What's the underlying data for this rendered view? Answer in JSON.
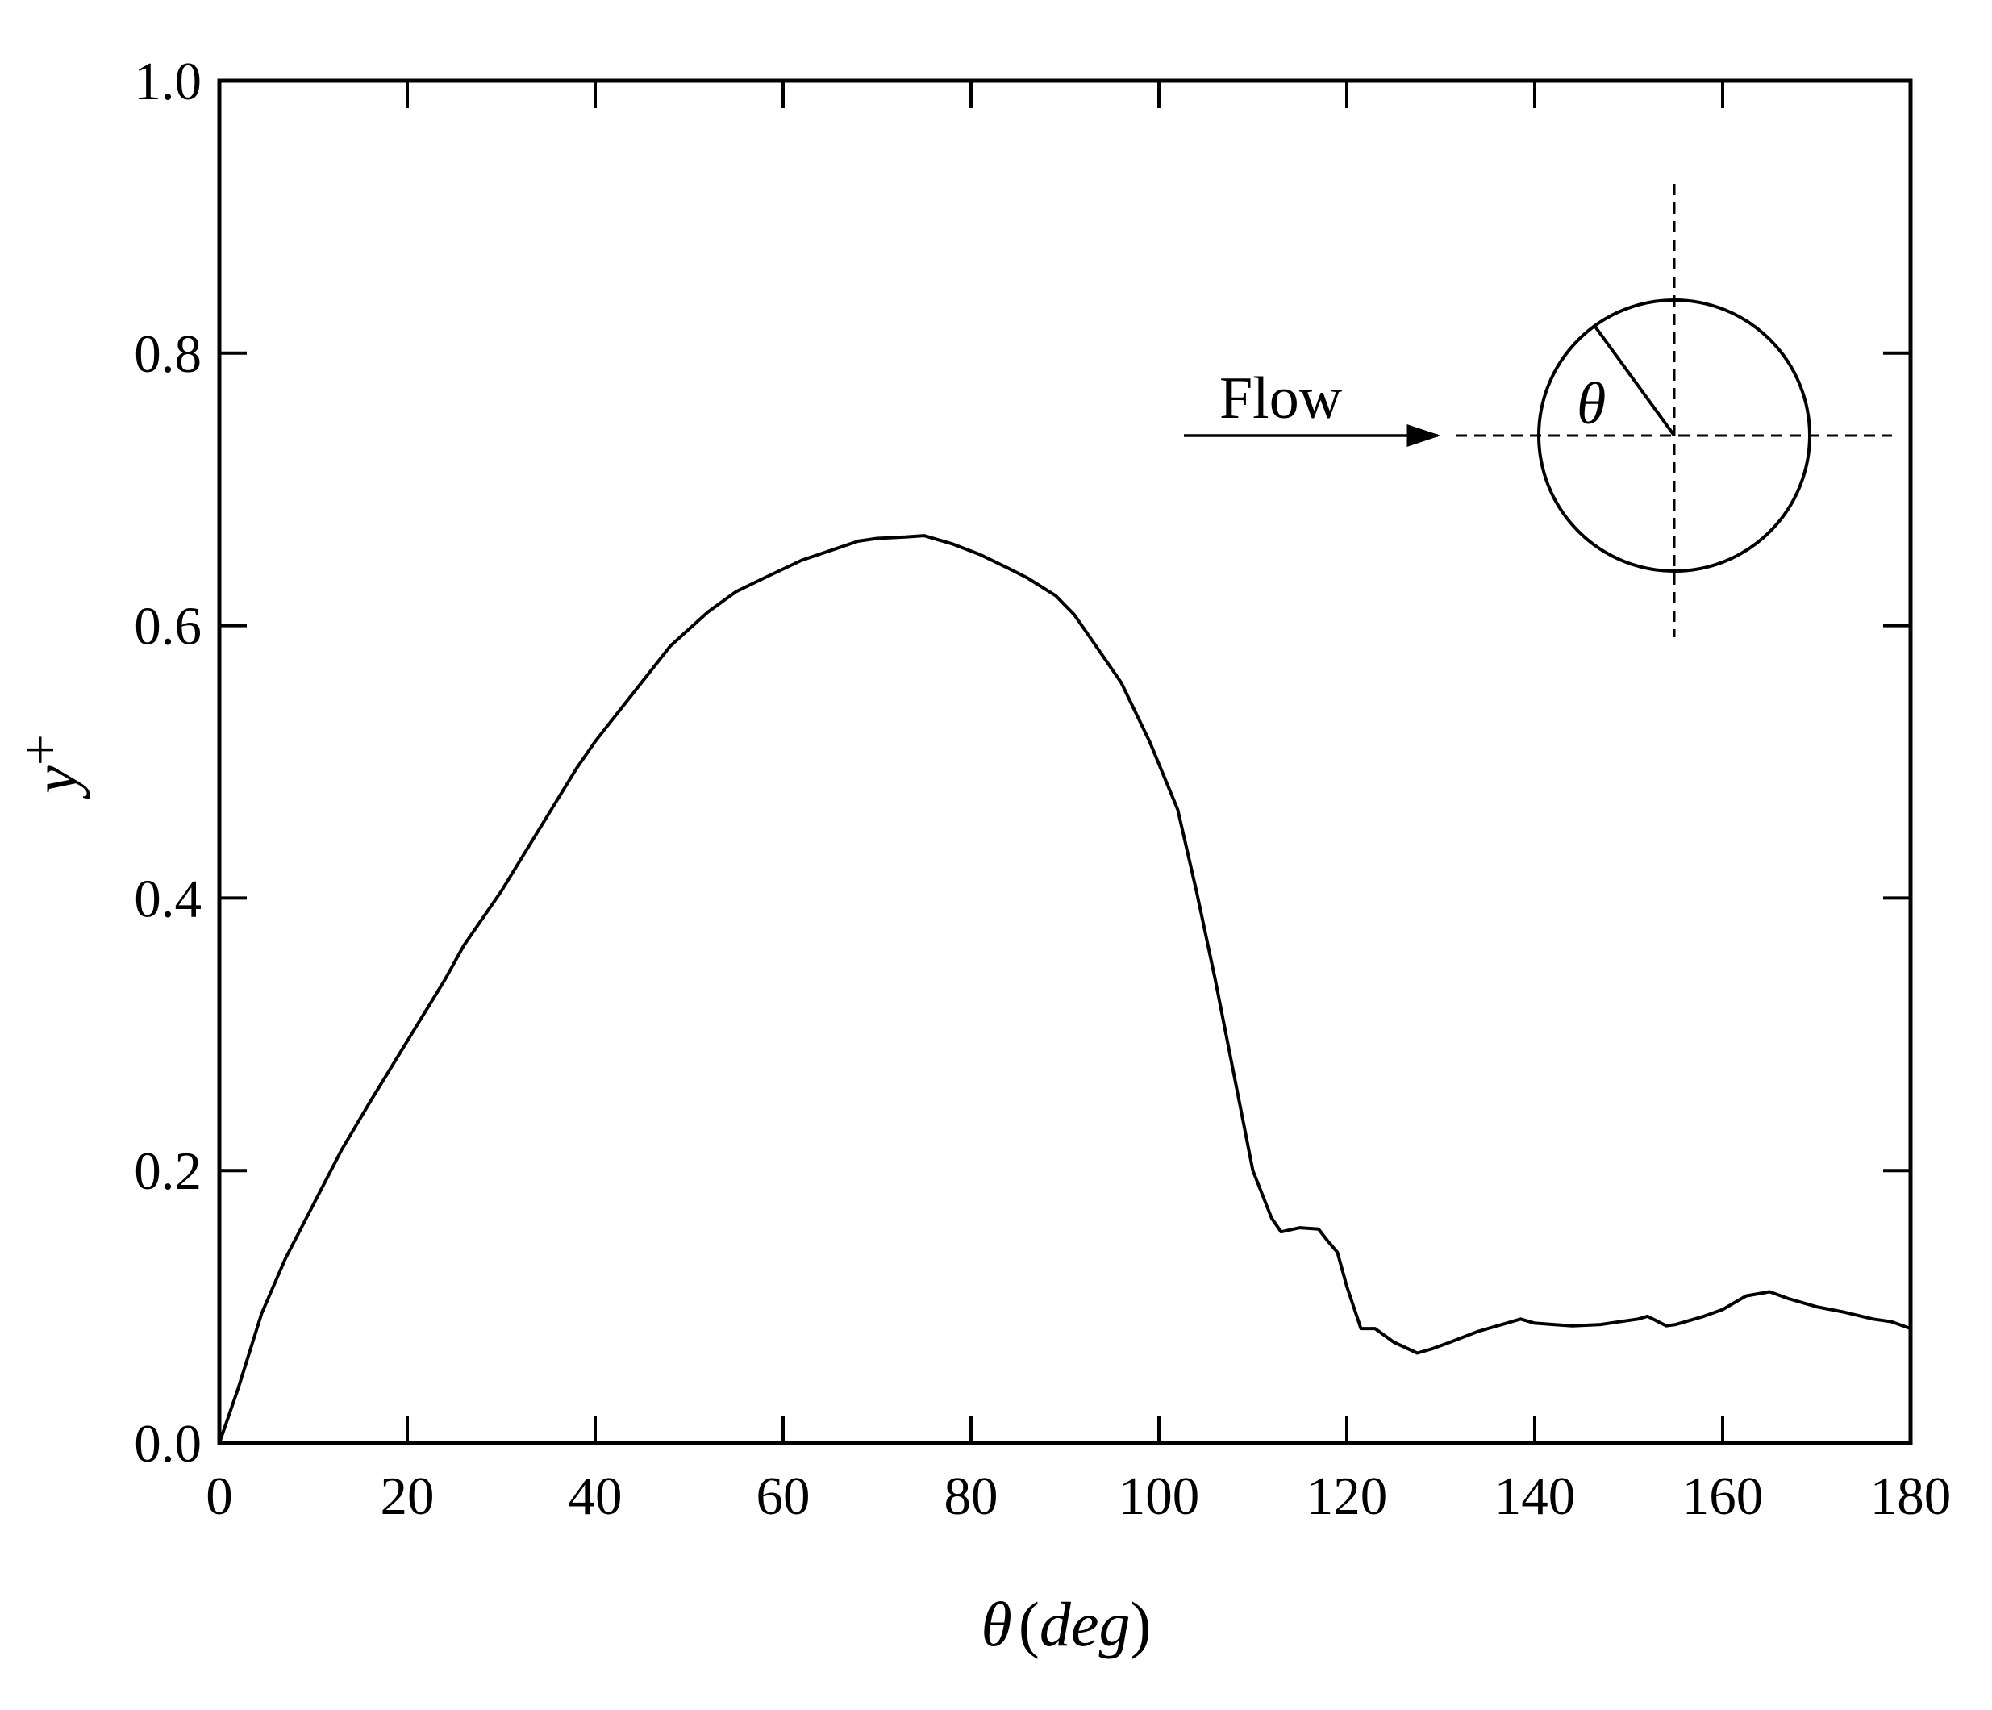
{
  "chart_data": {
    "type": "line",
    "title": "",
    "xlabel": {
      "symbol": "θ",
      "unit": "(deg)",
      "unit_inner": "deg"
    },
    "ylabel": {
      "symbol": "y",
      "suffix": "+"
    },
    "xlim": [
      0,
      180
    ],
    "ylim": [
      0,
      1.0
    ],
    "x_ticks": [
      "0",
      "20",
      "40",
      "60",
      "80",
      "100",
      "120",
      "140",
      "160",
      "180"
    ],
    "y_ticks": [
      "0.0",
      "0.2",
      "0.4",
      "0.6",
      "0.8",
      "1.0"
    ],
    "grid": false,
    "legend": "none",
    "line_color": "#000000",
    "series": [
      {
        "x": [
          0,
          2,
          4.5,
          7,
          10,
          13,
          16,
          20,
          24,
          26,
          30,
          34,
          38,
          40,
          44,
          48,
          52,
          55,
          58,
          62,
          65,
          68,
          70,
          73,
          75,
          78,
          81,
          84,
          86,
          89,
          91,
          93,
          96,
          99,
          102,
          104,
          106,
          108,
          110,
          112,
          113,
          115,
          117,
          118,
          119,
          120,
          121.5,
          123,
          125,
          127.5,
          129,
          131,
          134,
          137,
          138.5,
          140,
          142,
          144,
          147,
          149,
          151,
          152,
          154,
          155,
          158,
          160,
          162.5,
          165,
          167,
          170,
          173,
          176,
          178,
          180
        ],
        "y": [
          0,
          0.04,
          0.095,
          0.135,
          0.175,
          0.215,
          0.25,
          0.295,
          0.34,
          0.365,
          0.405,
          0.45,
          0.495,
          0.515,
          0.55,
          0.585,
          0.61,
          0.625,
          0.635,
          0.648,
          0.655,
          0.662,
          0.664,
          0.665,
          0.666,
          0.66,
          0.652,
          0.642,
          0.635,
          0.622,
          0.608,
          0.588,
          0.558,
          0.515,
          0.465,
          0.405,
          0.34,
          0.27,
          0.2,
          0.165,
          0.155,
          0.158,
          0.157,
          0.148,
          0.14,
          0.115,
          0.084,
          0.084,
          0.074,
          0.066,
          0.069,
          0.074,
          0.082,
          0.088,
          0.091,
          0.088,
          0.087,
          0.086,
          0.087,
          0.089,
          0.091,
          0.093,
          0.086,
          0.087,
          0.093,
          0.098,
          0.108,
          0.111,
          0.106,
          0.1,
          0.096,
          0.091,
          0.089,
          0.084
        ]
      }
    ]
  },
  "inset": {
    "flow_label": "Flow",
    "angle_label": "θ"
  }
}
